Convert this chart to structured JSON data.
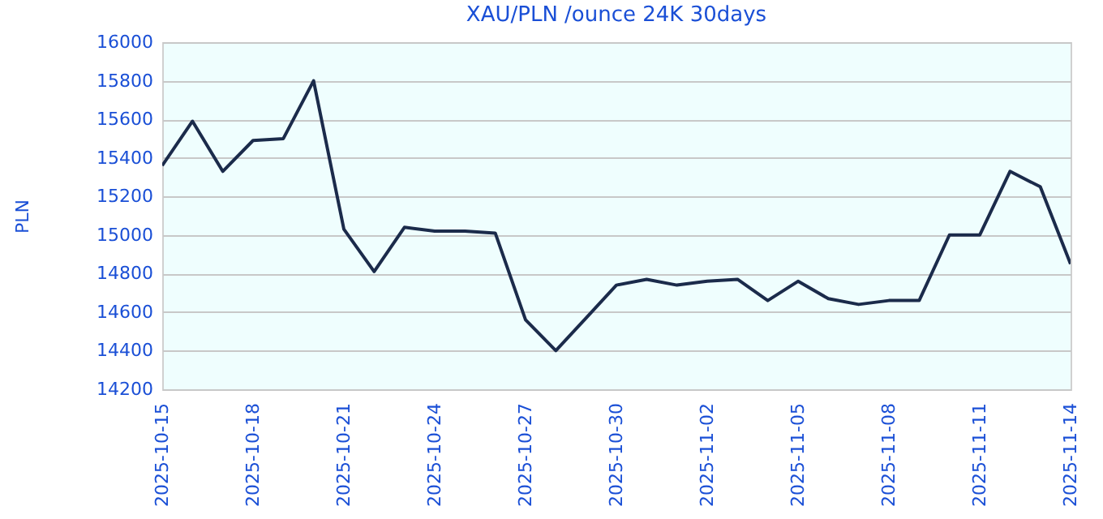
{
  "chart_data": {
    "type": "line",
    "title": "XAU/PLN /ounce 24K 30days",
    "ylabel": "PLN",
    "x": [
      "2025-10-15",
      "2025-10-16",
      "2025-10-17",
      "2025-10-18",
      "2025-10-19",
      "2025-10-20",
      "2025-10-21",
      "2025-10-22",
      "2025-10-23",
      "2025-10-24",
      "2025-10-25",
      "2025-10-26",
      "2025-10-27",
      "2025-10-28",
      "2025-10-29",
      "2025-10-30",
      "2025-10-31",
      "2025-11-01",
      "2025-11-02",
      "2025-11-03",
      "2025-11-04",
      "2025-11-05",
      "2025-11-06",
      "2025-11-07",
      "2025-11-08",
      "2025-11-09",
      "2025-11-10",
      "2025-11-11",
      "2025-11-12",
      "2025-11-13",
      "2025-11-14"
    ],
    "series": [
      {
        "color": "#1b2b4b",
        "values": [
          15360,
          15590,
          15330,
          15490,
          15500,
          15800,
          15030,
          14810,
          15040,
          15020,
          15020,
          15010,
          14560,
          14400,
          14570,
          14740,
          14770,
          14740,
          14760,
          14770,
          14660,
          14760,
          14670,
          14640,
          14660,
          14660,
          15000,
          15000,
          15330,
          15250,
          14850
        ]
      }
    ],
    "xlim": [
      "2025-10-15",
      "2025-11-14"
    ],
    "xticks": [
      "2025-10-15",
      "2025-10-18",
      "2025-10-21",
      "2025-10-24",
      "2025-10-27",
      "2025-10-30",
      "2025-11-02",
      "2025-11-05",
      "2025-11-08",
      "2025-11-11",
      "2025-11-14"
    ],
    "ylim": [
      14200,
      16000
    ],
    "yticks": [
      14200,
      14400,
      14600,
      14800,
      15000,
      15200,
      15400,
      15600,
      15800,
      16000
    ],
    "grid": "y",
    "marker": "none",
    "line_style": "solid"
  }
}
